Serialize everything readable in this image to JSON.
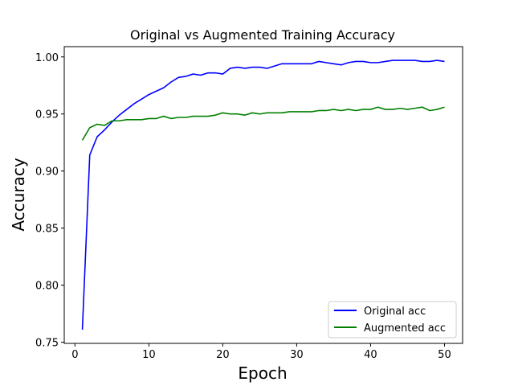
{
  "chart_data": {
    "type": "line",
    "title": "Original vs Augmented Training Accuracy",
    "xlabel": "Epoch",
    "ylabel": "Accuracy",
    "xlim": [
      -1.45,
      52.45
    ],
    "ylim": [
      0.749,
      1.009
    ],
    "xticks": [
      0,
      10,
      20,
      30,
      40,
      50
    ],
    "yticks": [
      0.75,
      0.8,
      0.85,
      0.9,
      0.95,
      1.0
    ],
    "ytick_labels": [
      "0.75",
      "0.80",
      "0.85",
      "0.90",
      "0.95",
      "1.00"
    ],
    "grid": false,
    "legend_position": "lower-right",
    "x": [
      1,
      2,
      3,
      4,
      5,
      6,
      7,
      8,
      9,
      10,
      11,
      12,
      13,
      14,
      15,
      16,
      17,
      18,
      19,
      20,
      21,
      22,
      23,
      24,
      25,
      26,
      27,
      28,
      29,
      30,
      31,
      32,
      33,
      34,
      35,
      36,
      37,
      38,
      39,
      40,
      41,
      42,
      43,
      44,
      45,
      46,
      47,
      48,
      49,
      50
    ],
    "series": [
      {
        "name": "Original acc",
        "color": "#0000ff",
        "values": [
          0.761,
          0.914,
          0.93,
          0.936,
          0.943,
          0.949,
          0.954,
          0.959,
          0.963,
          0.967,
          0.97,
          0.973,
          0.978,
          0.982,
          0.983,
          0.985,
          0.984,
          0.986,
          0.986,
          0.985,
          0.99,
          0.991,
          0.99,
          0.991,
          0.991,
          0.99,
          0.992,
          0.994,
          0.994,
          0.994,
          0.994,
          0.994,
          0.996,
          0.995,
          0.994,
          0.993,
          0.995,
          0.996,
          0.996,
          0.995,
          0.995,
          0.996,
          0.997,
          0.997,
          0.997,
          0.997,
          0.996,
          0.996,
          0.997,
          0.996
        ]
      },
      {
        "name": "Augmented acc",
        "color": "#008000",
        "values": [
          0.927,
          0.938,
          0.941,
          0.94,
          0.944,
          0.944,
          0.945,
          0.945,
          0.945,
          0.946,
          0.946,
          0.948,
          0.946,
          0.947,
          0.947,
          0.948,
          0.948,
          0.948,
          0.949,
          0.951,
          0.95,
          0.95,
          0.949,
          0.951,
          0.95,
          0.951,
          0.951,
          0.951,
          0.952,
          0.952,
          0.952,
          0.952,
          0.953,
          0.953,
          0.954,
          0.953,
          0.954,
          0.953,
          0.954,
          0.954,
          0.956,
          0.954,
          0.954,
          0.955,
          0.954,
          0.955,
          0.956,
          0.953,
          0.954,
          0.956
        ]
      }
    ]
  }
}
